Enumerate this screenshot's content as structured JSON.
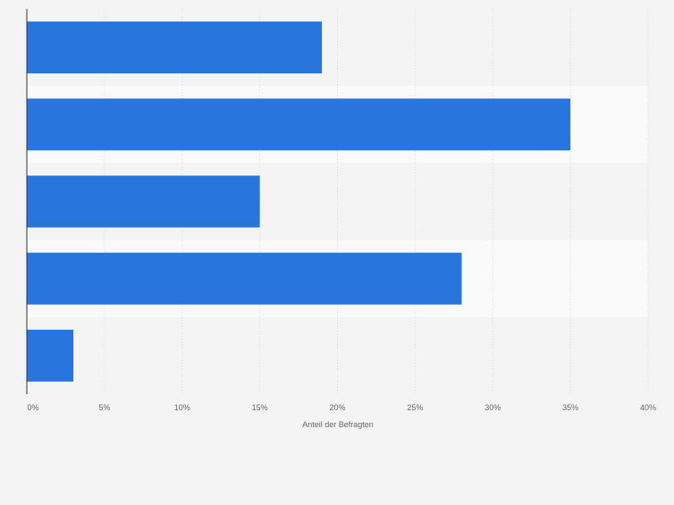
{
  "chart_data": {
    "type": "bar",
    "orientation": "horizontal",
    "categories": [
      "",
      "",
      "",
      "",
      ""
    ],
    "values": [
      19,
      35,
      15,
      28,
      3
    ],
    "unit": "%",
    "xlabel": "Anteil der Befragten",
    "xlim": [
      0,
      40
    ],
    "ticks": [
      0,
      5,
      10,
      15,
      20,
      25,
      30,
      35,
      40
    ],
    "tick_labels": [
      "0%",
      "5%",
      "10%",
      "15%",
      "20%",
      "25%",
      "30%",
      "35%",
      "40%"
    ],
    "grid": true,
    "bar_color": "#2876dd",
    "band_colors": [
      "#f4f4f4",
      "#fafafa"
    ]
  }
}
